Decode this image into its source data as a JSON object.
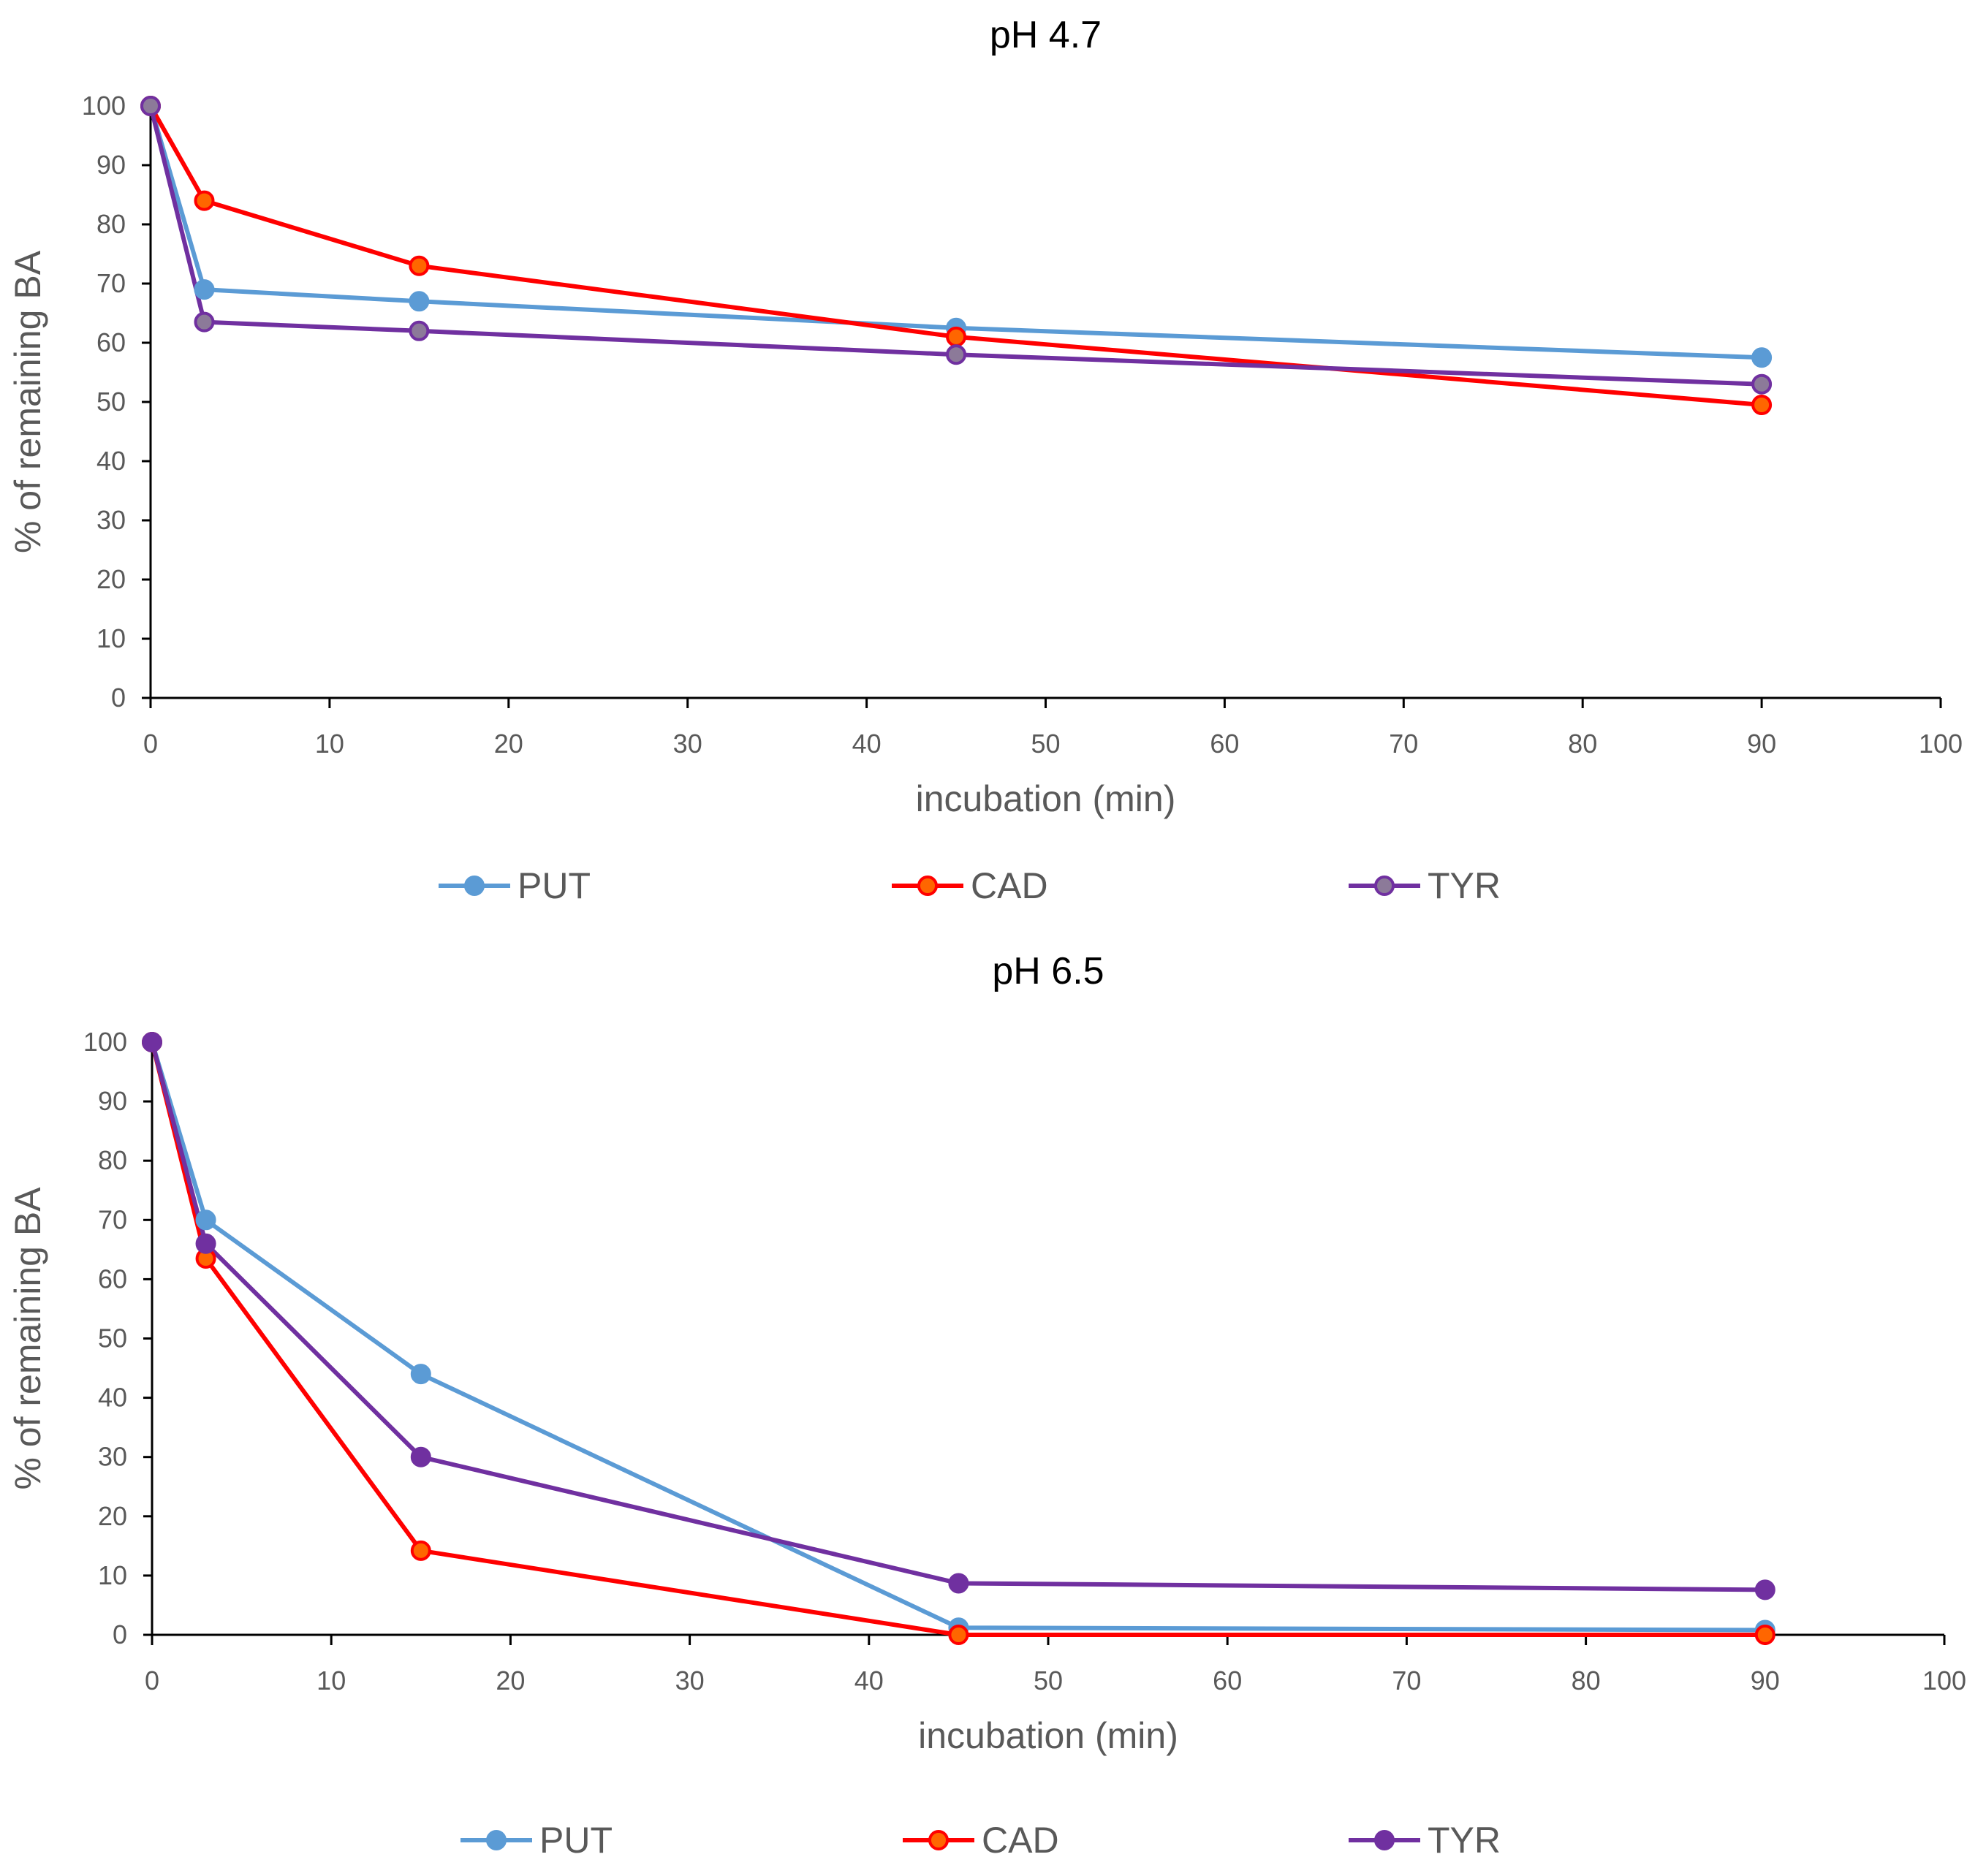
{
  "chart_data": [
    {
      "type": "line",
      "title": "pH 4.7",
      "xlabel": "incubation (min)",
      "ylabel": "% of remaining BA",
      "xlim": [
        0,
        100
      ],
      "ylim": [
        0,
        100
      ],
      "xticks": [
        0,
        10,
        20,
        30,
        40,
        50,
        60,
        70,
        80,
        90,
        100
      ],
      "yticks": [
        0,
        10,
        20,
        30,
        40,
        50,
        60,
        70,
        80,
        90,
        100
      ],
      "grid": false,
      "legend_position": "bottom",
      "x": [
        0,
        3,
        15,
        45,
        90
      ],
      "series": [
        {
          "name": "PUT",
          "color": "#5B9BD5",
          "marker_fill": "#5B9BD5",
          "values": [
            100,
            69,
            67,
            62.5,
            57.5
          ]
        },
        {
          "name": "CAD",
          "color": "#FF0000",
          "marker_fill": "#FF6600",
          "values": [
            100,
            84,
            73,
            61,
            49.5
          ]
        },
        {
          "name": "TYR",
          "color": "#7030A0",
          "marker_fill": "#8C7A99",
          "values": [
            100,
            63.5,
            62,
            58,
            53
          ]
        }
      ]
    },
    {
      "type": "line",
      "title": "pH 6.5",
      "xlabel": "incubation (min)",
      "ylabel": "% of remaining BA",
      "xlim": [
        0,
        100
      ],
      "ylim": [
        0,
        100
      ],
      "xticks": [
        0,
        10,
        20,
        30,
        40,
        50,
        60,
        70,
        80,
        90,
        100
      ],
      "yticks": [
        0,
        10,
        20,
        30,
        40,
        50,
        60,
        70,
        80,
        90,
        100
      ],
      "grid": false,
      "legend_position": "bottom",
      "x": [
        0,
        3,
        15,
        45,
        90
      ],
      "series": [
        {
          "name": "PUT",
          "color": "#5B9BD5",
          "marker_fill": "#5B9BD5",
          "values": [
            100,
            70,
            44,
            1.2,
            0.8
          ]
        },
        {
          "name": "CAD",
          "color": "#FF0000",
          "marker_fill": "#FF6600",
          "values": [
            100,
            63.5,
            14.2,
            0,
            0
          ]
        },
        {
          "name": "TYR",
          "color": "#7030A0",
          "marker_fill": "#7030A0",
          "values": [
            100,
            66,
            30,
            8.7,
            7.6
          ]
        }
      ]
    }
  ]
}
